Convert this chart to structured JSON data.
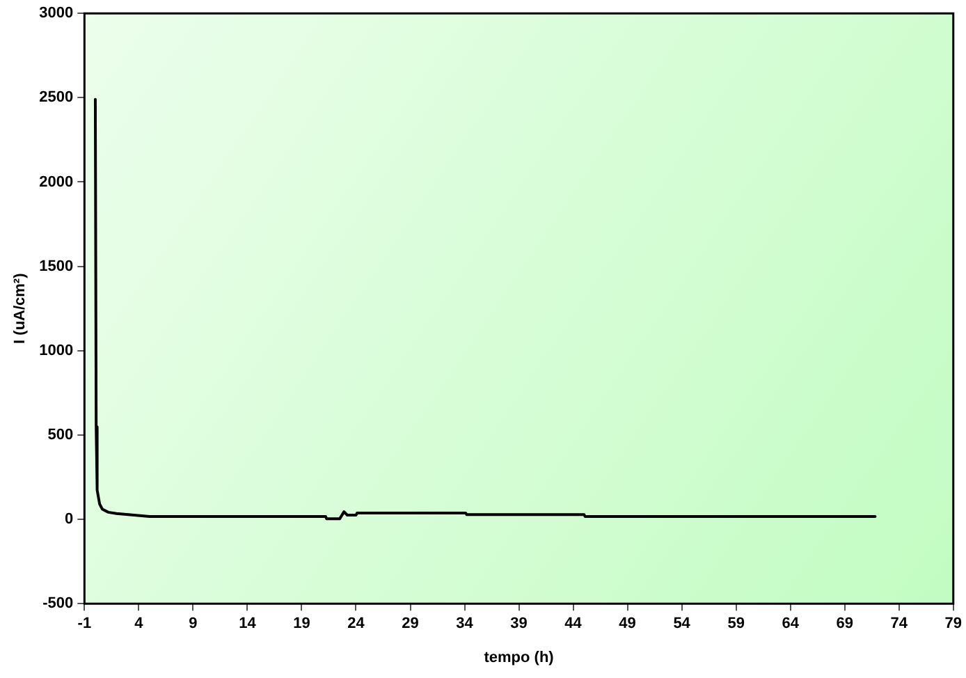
{
  "chart_data": {
    "type": "line",
    "xlabel": "tempo (h)",
    "ylabel": "I (uA/cm²)",
    "x": [
      0,
      0.08,
      0.17,
      0.4,
      0.65,
      1.2,
      1.95,
      3.4,
      5,
      21.2,
      21.3,
      22.5,
      22.9,
      23.2,
      24,
      24.1,
      34.1,
      34.2,
      45,
      45.1,
      71.8
    ],
    "series": [
      {
        "color": "#000000",
        "values": [
          2490,
          548,
          173,
          90,
          60,
          42,
          34,
          26,
          17,
          17,
          3,
          3,
          45,
          25,
          25,
          37,
          37,
          28,
          28,
          17,
          17
        ]
      }
    ],
    "xlim": [
      -1,
      79
    ],
    "xticks": [
      -1,
      4,
      9,
      14,
      19,
      24,
      29,
      34,
      39,
      44,
      49,
      54,
      59,
      64,
      69,
      74,
      79
    ],
    "ylim": [
      -500,
      3000
    ],
    "yticks": [
      -500,
      0,
      500,
      1000,
      1500,
      2000,
      2500,
      3000
    ],
    "grid": false,
    "legend": false,
    "marker": "none",
    "line_style": "solid"
  }
}
